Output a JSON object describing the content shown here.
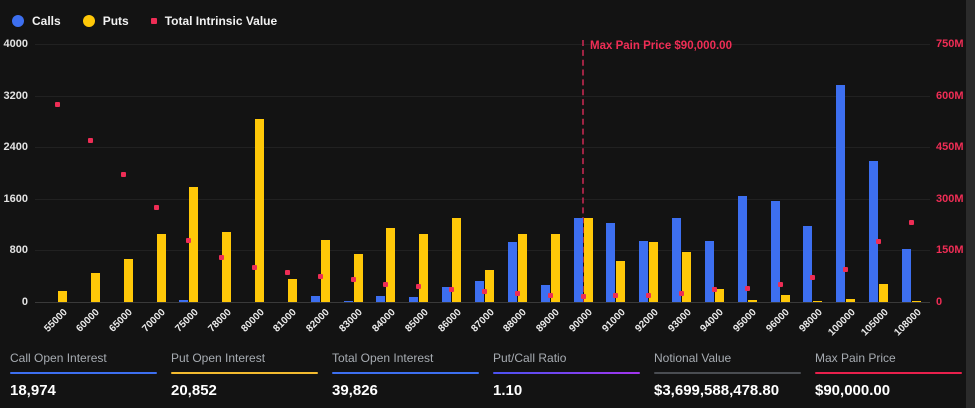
{
  "legend": {
    "items": [
      {
        "label": "Calls"
      },
      {
        "label": "Puts"
      },
      {
        "label": "Total Intrinsic Value"
      }
    ]
  },
  "chart_data": {
    "type": "bar",
    "title": "",
    "legend_position": "top-left",
    "grid": true,
    "categories": [
      "55000",
      "60000",
      "65000",
      "70000",
      "75000",
      "78000",
      "80000",
      "81000",
      "82000",
      "83000",
      "84000",
      "85000",
      "86000",
      "87000",
      "88000",
      "89000",
      "90000",
      "91000",
      "92000",
      "93000",
      "94000",
      "95000",
      "96000",
      "98000",
      "100000",
      "105000",
      "108000"
    ],
    "series": [
      {
        "name": "Calls",
        "type": "bar",
        "axis": "left",
        "color": "#3d6ff0",
        "values": [
          0,
          0,
          0,
          0,
          30,
          0,
          0,
          0,
          90,
          20,
          100,
          70,
          240,
          330,
          930,
          270,
          1310,
          1230,
          950,
          1310,
          940,
          1640,
          1560,
          1180,
          3370,
          2190,
          820
        ]
      },
      {
        "name": "Puts",
        "type": "bar",
        "axis": "left",
        "color": "#ffc808",
        "values": [
          170,
          450,
          670,
          1050,
          1780,
          1080,
          2840,
          350,
          960,
          750,
          1140,
          1050,
          1300,
          500,
          1050,
          1060,
          1300,
          640,
          930,
          770,
          200,
          30,
          110,
          20,
          50,
          280,
          20
        ]
      },
      {
        "name": "Total Intrinsic Value",
        "type": "scatter",
        "axis": "right",
        "color": "#ee2d55",
        "values_millions": [
          575,
          470,
          370,
          275,
          180,
          130,
          100,
          85,
          75,
          65,
          50,
          45,
          35,
          30,
          25,
          20,
          15,
          20,
          20,
          25,
          35,
          40,
          50,
          70,
          95,
          175,
          230
        ]
      }
    ],
    "left_axis": {
      "ticks": [
        "0",
        "800",
        "1600",
        "2400",
        "3200",
        "4000"
      ],
      "min": 0,
      "max": 4000
    },
    "right_axis": {
      "ticks": [
        "0",
        "150M",
        "300M",
        "450M",
        "600M",
        "750M"
      ],
      "min_millions": 0,
      "max_millions": 750
    },
    "annotation": {
      "label": "Max Pain Price $90,000.00",
      "category": "90000",
      "line_color": "#a02343",
      "label_color": "#ef2d55"
    }
  },
  "stats": [
    {
      "label": "Call Open Interest",
      "value": "18,974",
      "accent": "#3d6ff0"
    },
    {
      "label": "Put Open Interest",
      "value": "20,852",
      "accent": "#f3ba2f"
    },
    {
      "label": "Total Open Interest",
      "value": "39,826",
      "accent": "#3d6ff0"
    },
    {
      "label": "Put/Call Ratio",
      "value": "1.10",
      "accent": "#4b53f2",
      "accent2": "#a335ee"
    },
    {
      "label": "Notional Value",
      "value": "$3,699,588,478.80",
      "accent": "#4a4d52"
    },
    {
      "label": "Max Pain Price",
      "value": "$90,000.00",
      "accent": "#e8204c"
    }
  ]
}
